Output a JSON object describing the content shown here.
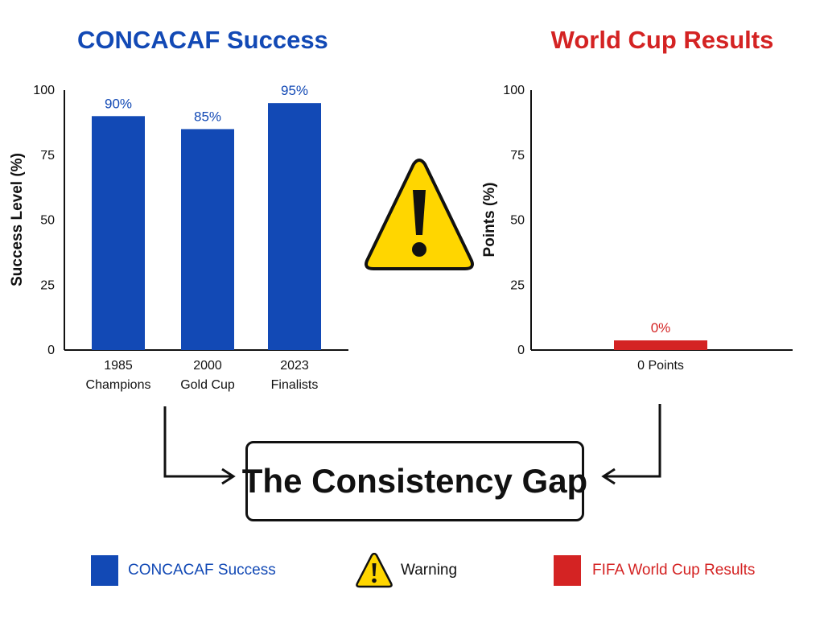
{
  "titles": {
    "left": "CONCACAF Success",
    "right": "World Cup Results"
  },
  "colors": {
    "concacaf_blue": "#1249b5",
    "world_cup_red": "#d42323",
    "warning_yellow": "#ffd600"
  },
  "chart_data": [
    {
      "type": "bar",
      "title": "CONCACAF Success",
      "categories": [
        "1985\nChampions",
        "2000\nGold Cup",
        "2023\nFinalists"
      ],
      "values": [
        90,
        85,
        95
      ],
      "value_labels": [
        "90%",
        "85%",
        "95%"
      ],
      "ylabel": "Success Level (%)",
      "xlabel": "",
      "ylim": [
        0,
        100
      ],
      "yticks": [
        0,
        25,
        50,
        75,
        100
      ],
      "grid": false,
      "color": "#1249b5"
    },
    {
      "type": "bar",
      "title": "World Cup Results",
      "categories": [
        "0 Points"
      ],
      "values": [
        0
      ],
      "value_labels": [
        "0%"
      ],
      "ylabel": "Points (%)",
      "xlabel": "",
      "ylim": [
        0,
        100
      ],
      "yticks": [
        0,
        25,
        50,
        75,
        100
      ],
      "grid": false,
      "color": "#d42323"
    }
  ],
  "center": {
    "warning_icon": "warning-triangle-icon",
    "gap_text": "The Consistency Gap"
  },
  "legend": [
    {
      "label": "CONCACAF Success",
      "icon": "blue-square",
      "color": "#1249b5"
    },
    {
      "label": "Warning",
      "icon": "warning-triangle-icon",
      "color": "#ffd600"
    },
    {
      "label": "FIFA World Cup Results",
      "icon": "red-square",
      "color": "#d42323"
    }
  ]
}
